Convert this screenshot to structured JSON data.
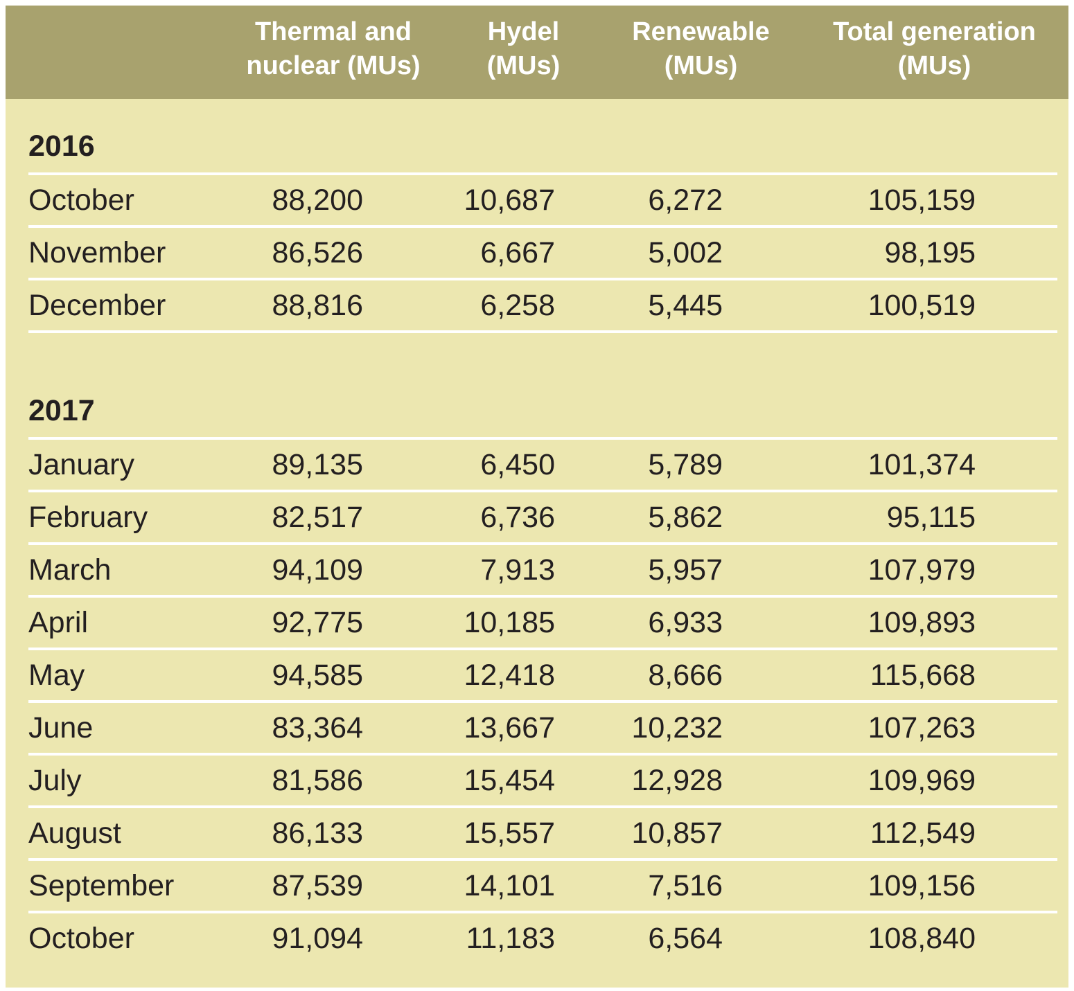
{
  "table": {
    "columns": [
      {
        "id": "month",
        "label": ""
      },
      {
        "id": "thermal",
        "label": "Thermal and\nnuclear (MUs)"
      },
      {
        "id": "hydel",
        "label": "Hydel\n(MUs)"
      },
      {
        "id": "renewable",
        "label": "Renewable\n(MUs)"
      },
      {
        "id": "total",
        "label": "Total generation\n(MUs)"
      }
    ],
    "sections": [
      {
        "year": "2016",
        "rows": [
          {
            "month": "October",
            "thermal": "88,200",
            "hydel": "10,687",
            "renewable": "6,272",
            "total": "105,159"
          },
          {
            "month": "November",
            "thermal": "86,526",
            "hydel": "6,667",
            "renewable": "5,002",
            "total": "98,195"
          },
          {
            "month": "December",
            "thermal": "88,816",
            "hydel": "6,258",
            "renewable": "5,445",
            "total": "100,519"
          }
        ]
      },
      {
        "year": "2017",
        "rows": [
          {
            "month": "January",
            "thermal": "89,135",
            "hydel": "6,450",
            "renewable": "5,789",
            "total": "101,374"
          },
          {
            "month": "February",
            "thermal": "82,517",
            "hydel": "6,736",
            "renewable": "5,862",
            "total": "95,115"
          },
          {
            "month": "March",
            "thermal": "94,109",
            "hydel": "7,913",
            "renewable": "5,957",
            "total": "107,979"
          },
          {
            "month": "April",
            "thermal": "92,775",
            "hydel": "10,185",
            "renewable": "6,933",
            "total": "109,893"
          },
          {
            "month": "May",
            "thermal": "94,585",
            "hydel": "12,418",
            "renewable": "8,666",
            "total": "115,668"
          },
          {
            "month": "June",
            "thermal": "83,364",
            "hydel": "13,667",
            "renewable": "10,232",
            "total": "107,263"
          },
          {
            "month": "July",
            "thermal": "81,586",
            "hydel": "15,454",
            "renewable": "12,928",
            "total": "109,969"
          },
          {
            "month": "August",
            "thermal": "86,133",
            "hydel": "15,557",
            "renewable": "10,857",
            "total": "112,549"
          },
          {
            "month": "September",
            "thermal": "87,539",
            "hydel": "14,101",
            "renewable": "7,516",
            "total": "109,156"
          },
          {
            "month": "October",
            "thermal": "91,094",
            "hydel": "11,183",
            "renewable": "6,564",
            "total": "108,840"
          }
        ]
      }
    ]
  },
  "colors": {
    "header_background": "#a8a26e",
    "body_background": "#ece7b0",
    "header_text": "#ffffff",
    "body_text": "#231f20",
    "divider": "#ffffff"
  },
  "chart_data": {
    "type": "table",
    "columns": [
      "",
      "Thermal and nuclear (MUs)",
      "Hydel (MUs)",
      "Renewable (MUs)",
      "Total generation (MUs)"
    ],
    "sections": [
      {
        "year": 2016,
        "rows": [
          [
            "October",
            88200,
            10687,
            6272,
            105159
          ],
          [
            "November",
            86526,
            6667,
            5002,
            98195
          ],
          [
            "December",
            88816,
            6258,
            5445,
            100519
          ]
        ]
      },
      {
        "year": 2017,
        "rows": [
          [
            "January",
            89135,
            6450,
            5789,
            101374
          ],
          [
            "February",
            82517,
            6736,
            5862,
            95115
          ],
          [
            "March",
            94109,
            7913,
            5957,
            107979
          ],
          [
            "April",
            92775,
            10185,
            6933,
            109893
          ],
          [
            "May",
            94585,
            12418,
            8666,
            115668
          ],
          [
            "June",
            83364,
            13667,
            10232,
            107263
          ],
          [
            "July",
            81586,
            15454,
            12928,
            109969
          ],
          [
            "August",
            86133,
            15557,
            10857,
            112549
          ],
          [
            "September",
            87539,
            14101,
            7516,
            109156
          ],
          [
            "October",
            91094,
            11183,
            6564,
            108840
          ]
        ]
      }
    ]
  }
}
